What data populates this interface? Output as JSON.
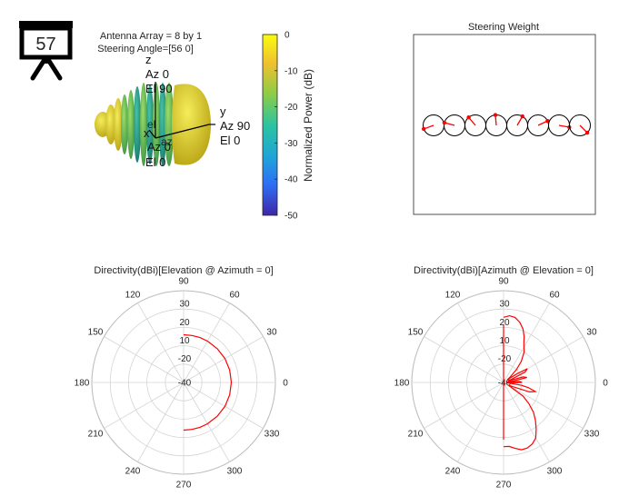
{
  "badge": {
    "number": "57"
  },
  "array_info": {
    "line1": "Antenna Array = 8 by 1",
    "line2": "Steering Angle=[56 0]"
  },
  "pattern3d": {
    "axis_z": {
      "name": "z",
      "az": "Az 0",
      "el": "El 90"
    },
    "axis_y": {
      "name": "y",
      "az": "Az 90",
      "el": "El 0"
    },
    "axis_x": {
      "name": "x",
      "az": "Az 0",
      "el": "El 0"
    },
    "origin_labels": {
      "el": "el",
      "az": "az"
    },
    "colors": {
      "yellow": "#e5d616",
      "green": "#5fba54",
      "teal": "#1f9e8a"
    }
  },
  "colorbar": {
    "label": "Normalized Power (dB)",
    "ticks": [
      "0",
      "-10",
      "-20",
      "-30",
      "-40",
      "-50"
    ],
    "colormap": [
      "#3e26a8",
      "#2d6ff5",
      "#1fa6d6",
      "#2cc4a0",
      "#8ccc47",
      "#f0c030",
      "#f9fb0e"
    ]
  },
  "steering_weight": {
    "title": "Steering Weight",
    "element_count": 8,
    "phasor_angles_deg": [
      200,
      165,
      130,
      95,
      60,
      25,
      350,
      315
    ],
    "colors": {
      "phasor": "#ff0000",
      "circle": "#000000"
    }
  },
  "chart_data": [
    {
      "type": "polar",
      "title": "Directivity(dBi)[Elevation @ Azimuth = 0]",
      "r_ticks": [
        "-40",
        "-20",
        "10",
        "20",
        "30"
      ],
      "r_tick_values": [
        -40,
        -20,
        10,
        20,
        30
      ],
      "theta_ticks": [
        "0",
        "30",
        "60",
        "90",
        "120",
        "150",
        "180",
        "210",
        "240",
        "270",
        "300",
        "330"
      ],
      "series": [
        {
          "color": "#ff0000",
          "theta_deg": [
            -90,
            -80,
            -70,
            -60,
            -45,
            -30,
            -15,
            0,
            15,
            30,
            45,
            60,
            70,
            80,
            90
          ],
          "r_norm": [
            0.52,
            0.52,
            0.52,
            0.52,
            0.52,
            0.52,
            0.52,
            0.52,
            0.52,
            0.52,
            0.52,
            0.52,
            0.52,
            0.52,
            0.52
          ]
        }
      ]
    },
    {
      "type": "polar",
      "title": "Directivity(dBi)[Azimuth @ Elevation = 0]",
      "r_ticks": [
        "-40",
        "-20",
        "10",
        "20",
        "30"
      ],
      "r_tick_values": [
        -40,
        -20,
        10,
        20,
        30
      ],
      "theta_ticks": [
        "0",
        "30",
        "60",
        "90",
        "120",
        "150",
        "180",
        "210",
        "240",
        "270",
        "300",
        "330"
      ],
      "series": [
        {
          "color": "#ff0000",
          "theta_deg": [
            90,
            85,
            80,
            75,
            70,
            66,
            62,
            56,
            50,
            45,
            40,
            36,
            33,
            30,
            26,
            22,
            19,
            16,
            12,
            9,
            6,
            3,
            0,
            -3,
            -6,
            -9,
            -12,
            -16,
            -20,
            -25,
            -30,
            -35,
            -40,
            -45,
            -50,
            -55,
            -60,
            -65,
            -70,
            -75,
            -80,
            -85,
            -90
          ],
          "r_norm": [
            0.71,
            0.73,
            0.72,
            0.68,
            0.62,
            0.55,
            0.47,
            0.4,
            0.3,
            0.2,
            0.1,
            0.05,
            0.18,
            0.3,
            0.26,
            0.1,
            0.05,
            0.22,
            0.26,
            0.12,
            0.04,
            0.18,
            0.2,
            0.08,
            0.04,
            0.2,
            0.28,
            0.36,
            0.3,
            0.1,
            0.06,
            0.26,
            0.36,
            0.46,
            0.54,
            0.62,
            0.7,
            0.74,
            0.76,
            0.76,
            0.73,
            0.7,
            0.7
          ]
        }
      ]
    }
  ]
}
